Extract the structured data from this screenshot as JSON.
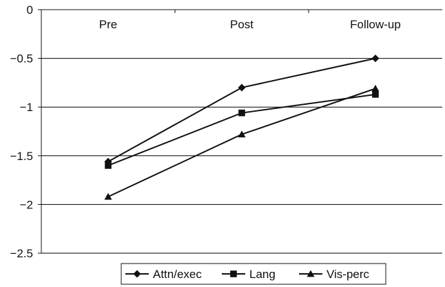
{
  "chart_data": {
    "type": "line",
    "title": "",
    "xlabel": "",
    "ylabel": "",
    "categories": [
      "Pre",
      "Post",
      "Follow-up"
    ],
    "ylim": [
      -2.5,
      0
    ],
    "yticks": [
      0,
      -0.5,
      -1,
      -1.5,
      -2,
      -2.5
    ],
    "ytick_labels": [
      "0",
      "−0.5",
      "−1",
      "−1.5",
      "−2",
      "−2.5"
    ],
    "grid": true,
    "legend_position": "bottom",
    "series": [
      {
        "name": "Attn/exec",
        "marker": "diamond",
        "values": [
          -1.56,
          -0.8,
          -0.5
        ]
      },
      {
        "name": "Lang",
        "marker": "square",
        "values": [
          -1.6,
          -1.06,
          -0.87
        ]
      },
      {
        "name": "Vis-perc",
        "marker": "triangle",
        "values": [
          -1.92,
          -1.28,
          -0.81
        ]
      }
    ],
    "line_color": "#111111",
    "grid_color": "#000000"
  }
}
